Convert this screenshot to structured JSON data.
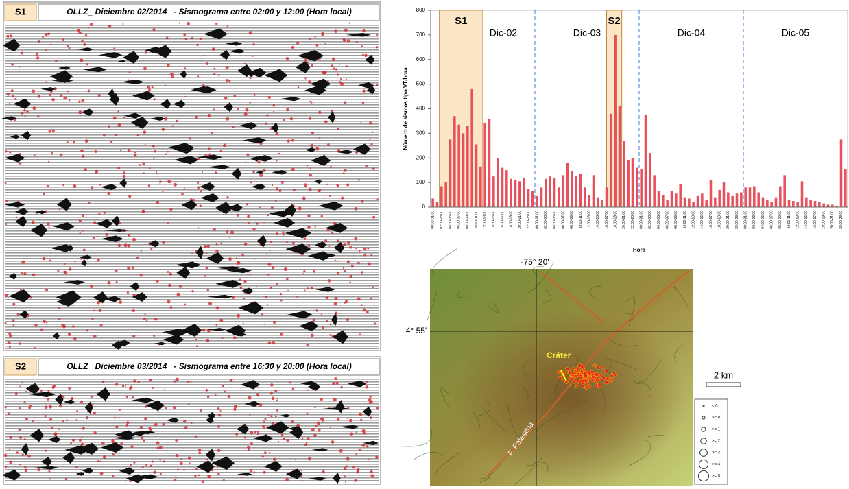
{
  "seismograms": [
    {
      "tag": "S1",
      "title": "OLLZ_ Diciembre 02/2014   - Sismograma entre 02:00 y 12:00 (Hora local)"
    },
    {
      "tag": "S2",
      "title": "OLLZ_ Diciembre 03/2014   - Sismograma entre 16:30 y 20:00 (Hora local)"
    }
  ],
  "chart_data": {
    "type": "bar",
    "y_label": "Número de sismos tipo VT/hora",
    "x_label": "Hora",
    "color": "#e8505b",
    "ylim": [
      0,
      800
    ],
    "yticks": [
      0,
      100,
      200,
      300,
      400,
      500,
      600,
      700,
      800
    ],
    "days": [
      "Dic-02",
      "Dic-03",
      "Dic-04",
      "Dic-05"
    ],
    "highlights": [
      {
        "label": "S1",
        "start": 2,
        "end": 12
      },
      {
        "label": "S2",
        "start": 40.5,
        "end": 44
      }
    ],
    "categories": [
      "00:00-01:00",
      null,
      "02:00-03:00",
      null,
      "04:00-05:00",
      null,
      "06:00-07:00",
      null,
      "08:00-09:00",
      null,
      "10:00-11:00",
      null,
      "12:00-13:00",
      null,
      "14:00-15:00",
      null,
      "16:00-17:00",
      null,
      "18:00-19:00",
      null,
      "20:00-21:00",
      null,
      "22:00-23:00",
      null,
      "00:00-01:00",
      null,
      "02:00-03:00",
      null,
      "04:00-05:00",
      null,
      "06:00-07:00",
      null,
      "08:00-09:00",
      null,
      "10:00-11:00",
      null,
      "12:00-13:00",
      null,
      "14:00-15:00",
      null,
      "16:00-17:00",
      null,
      "18:00-19:00",
      null,
      "20:00-21:00",
      null,
      "22:00-23:00",
      null,
      "00:00-01:00",
      null,
      "02:00-03:00",
      null,
      "04:00-05:00",
      null,
      "06:00-07:00",
      null,
      "08:00-09:00",
      null,
      "10:00-11:00",
      null,
      "12:00-13:00",
      null,
      "14:00-15:00",
      null,
      "16:00-17:00",
      null,
      "18:00-19:00",
      null,
      "20:00-21:00",
      null,
      "22:00-23:00",
      null,
      "00:00-01:00",
      null,
      "02:00-03:00",
      null,
      "04:00-05:00",
      null,
      "06:00-07:00",
      null,
      "08:00-09:00",
      null,
      "10:00-11:00",
      null,
      "12:00-13:00",
      null,
      "14:00-15:00",
      null,
      "16:00-17:00",
      null,
      "18:00-19:00",
      null,
      "20:00-21:00",
      null,
      "22:00-23:00",
      null
    ],
    "values": [
      35,
      20,
      85,
      100,
      275,
      370,
      335,
      300,
      330,
      480,
      255,
      165,
      340,
      360,
      125,
      200,
      160,
      150,
      115,
      110,
      105,
      120,
      75,
      65,
      45,
      80,
      115,
      125,
      120,
      80,
      130,
      180,
      145,
      125,
      135,
      80,
      50,
      130,
      40,
      30,
      80,
      380,
      700,
      410,
      270,
      190,
      200,
      160,
      155,
      375,
      220,
      130,
      65,
      50,
      30,
      65,
      55,
      95,
      40,
      35,
      20,
      45,
      55,
      30,
      110,
      40,
      70,
      100,
      60,
      45,
      55,
      60,
      80,
      80,
      85,
      60,
      40,
      30,
      20,
      40,
      85,
      130,
      30,
      25,
      20,
      105,
      40,
      30,
      25,
      20,
      15,
      10,
      10,
      5,
      275,
      155
    ]
  },
  "map": {
    "lon_label": "-75° 20'",
    "lat_label": "4° 55'",
    "crater": "Cráter",
    "fault": "F. Palestina",
    "scale": "2 km",
    "legend": [
      "< 0",
      ">= 0",
      ">= 1",
      ">= 2",
      ">= 3",
      ">= 4",
      ">= 5"
    ]
  }
}
